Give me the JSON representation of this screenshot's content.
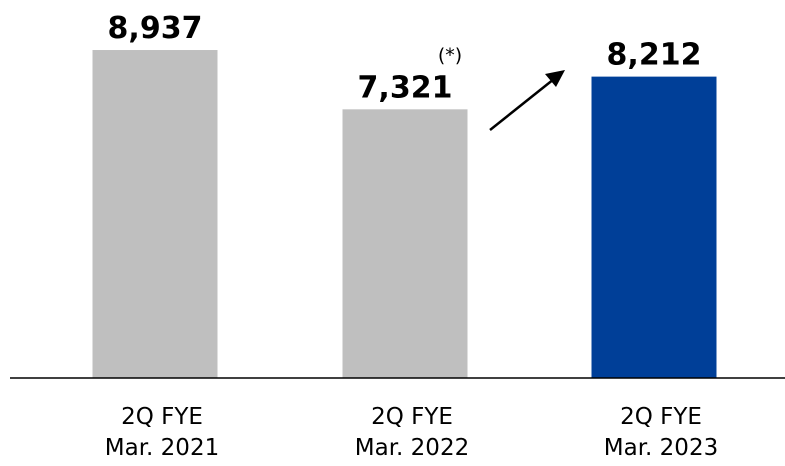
{
  "chart_data": {
    "type": "bar",
    "categories": [
      [
        "2Q FYE",
        "Mar. 2021"
      ],
      [
        "2Q FYE",
        "Mar. 2022"
      ],
      [
        "2Q FYE",
        "Mar. 2023"
      ]
    ],
    "values": [
      8937,
      7321,
      8212
    ],
    "value_labels": [
      "8,937",
      "7,321",
      "8,212"
    ],
    "colors": [
      "#bfbfbf",
      "#bfbfbf",
      "#003f98"
    ],
    "annotations": [
      {
        "text": "(*)",
        "attached_to": 1
      },
      {
        "text": "",
        "type": "arrow",
        "from": 1,
        "to": 2
      }
    ],
    "title": "",
    "xlabel": "",
    "ylabel": "",
    "ylim": [
      0,
      10000
    ],
    "grid": false,
    "legend": "none"
  }
}
